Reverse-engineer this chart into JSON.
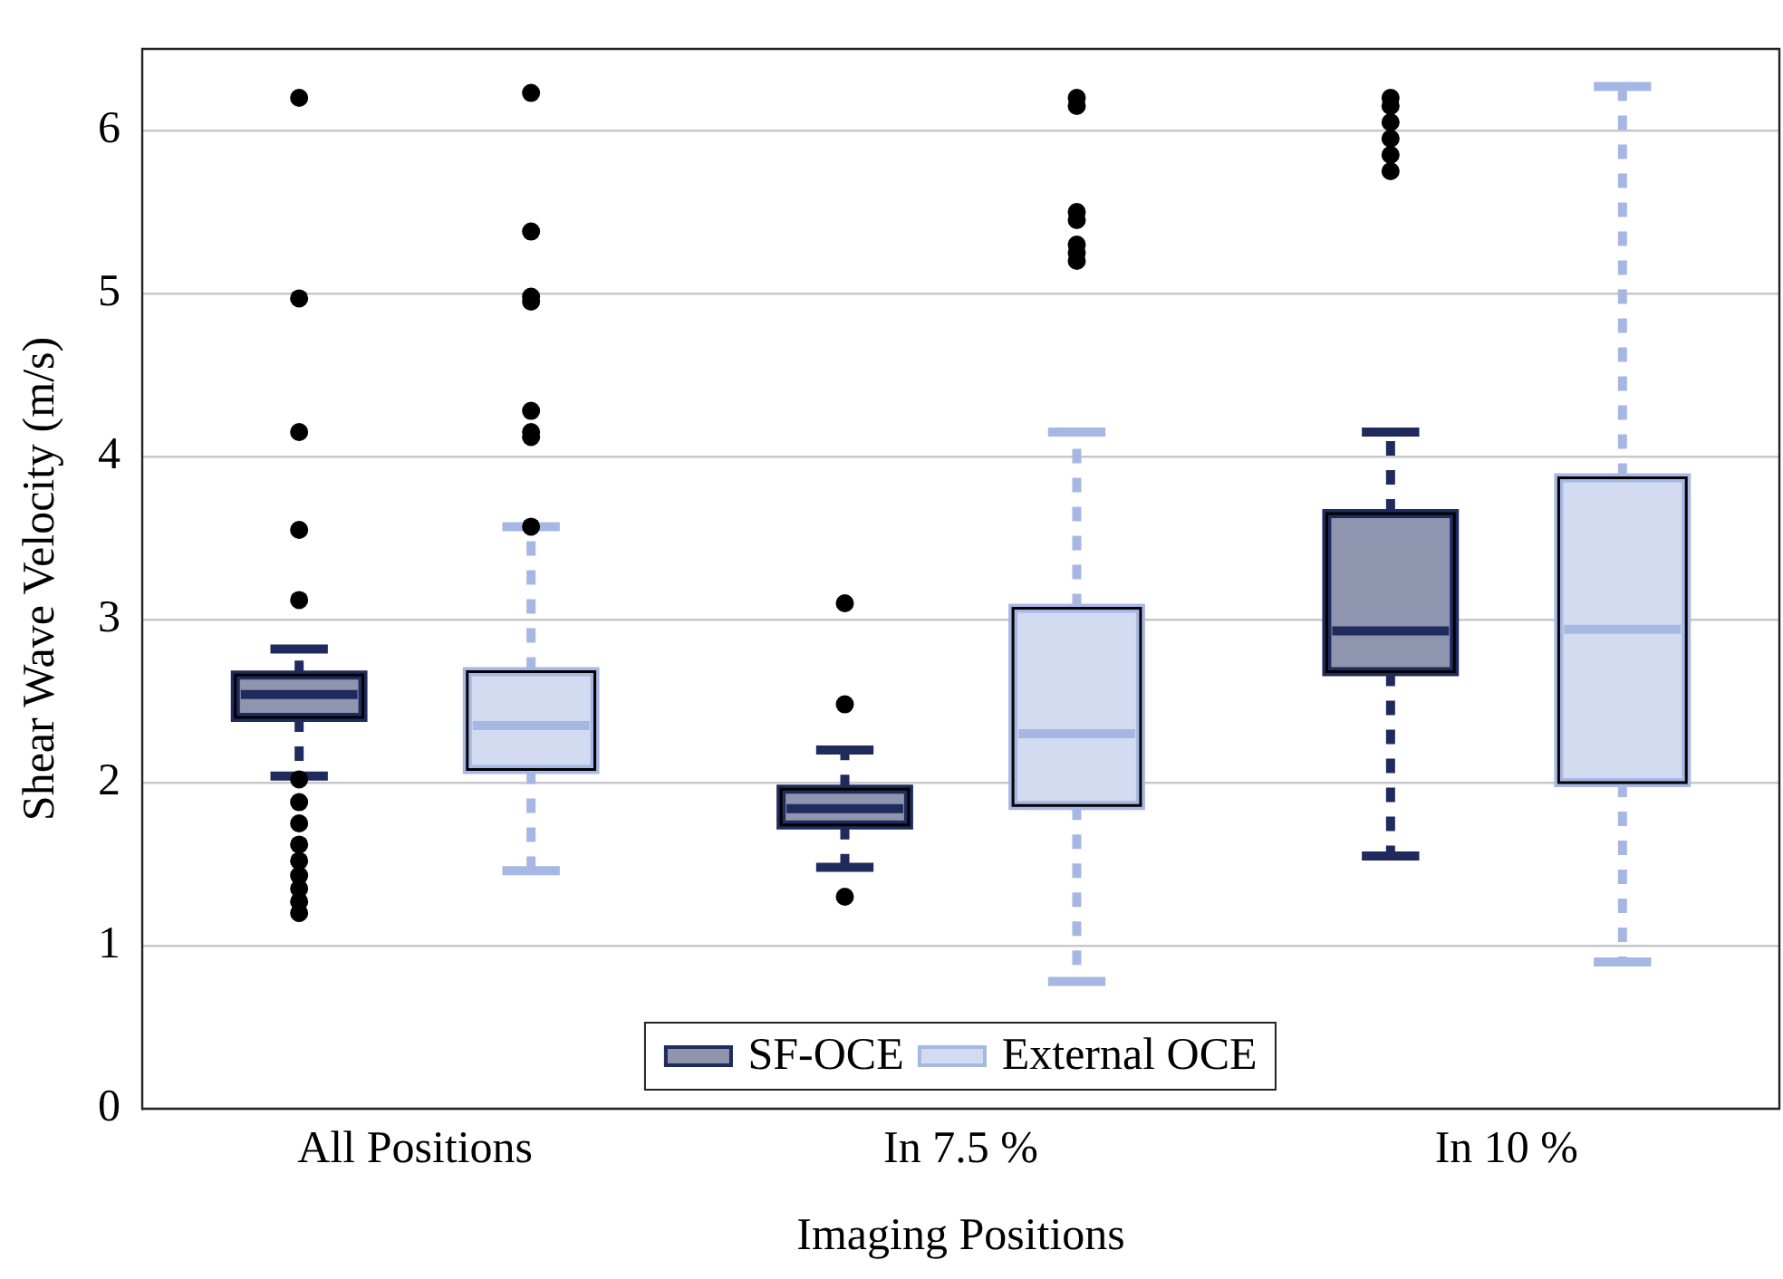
{
  "chart_data": {
    "type": "box",
    "xlabel": "Imaging Positions",
    "ylabel": "Shear Wave Velocity (m/s)",
    "categories": [
      "All Positions",
      "In 7.5 %",
      "In 10 %"
    ],
    "ylim": [
      0,
      6.5
    ],
    "yticks": [
      0,
      1,
      2,
      3,
      4,
      5,
      6
    ],
    "grid": "y",
    "legend": "bottom",
    "series": [
      {
        "name": "SF-OCE",
        "color": "#8f95ae",
        "boxes": [
          {
            "low": 2.04,
            "q1": 2.4,
            "median": 2.54,
            "q3": 2.66,
            "high": 2.82,
            "outliers": [
              6.2,
              4.97,
              4.15,
              3.55,
              3.12,
              2.02,
              1.88,
              1.75,
              1.62,
              1.52,
              1.43,
              1.35,
              1.27,
              1.2
            ]
          },
          {
            "low": 1.48,
            "q1": 1.74,
            "median": 1.84,
            "q3": 1.96,
            "high": 2.2,
            "outliers": [
              3.1,
              2.48,
              1.3
            ]
          },
          {
            "low": 1.55,
            "q1": 2.68,
            "median": 2.93,
            "q3": 3.65,
            "high": 4.15,
            "outliers": [
              6.2,
              6.15,
              6.05,
              5.95,
              5.85,
              5.75
            ]
          }
        ]
      },
      {
        "name": "External OCE",
        "color": "#d3dbf1",
        "boxes": [
          {
            "low": 1.46,
            "q1": 2.08,
            "median": 2.35,
            "q3": 2.68,
            "high": 3.57,
            "outliers": [
              6.23,
              5.38,
              4.98,
              4.95,
              4.28,
              4.15,
              4.12,
              3.57
            ]
          },
          {
            "low": 0.78,
            "q1": 1.86,
            "median": 2.3,
            "q3": 3.07,
            "high": 4.15,
            "outliers": [
              6.2,
              6.15,
              5.5,
              5.45,
              5.3,
              5.25,
              5.2
            ]
          },
          {
            "low": 0.9,
            "q1": 2.0,
            "median": 2.94,
            "q3": 3.87,
            "high": 6.27
          }
        ]
      }
    ]
  }
}
